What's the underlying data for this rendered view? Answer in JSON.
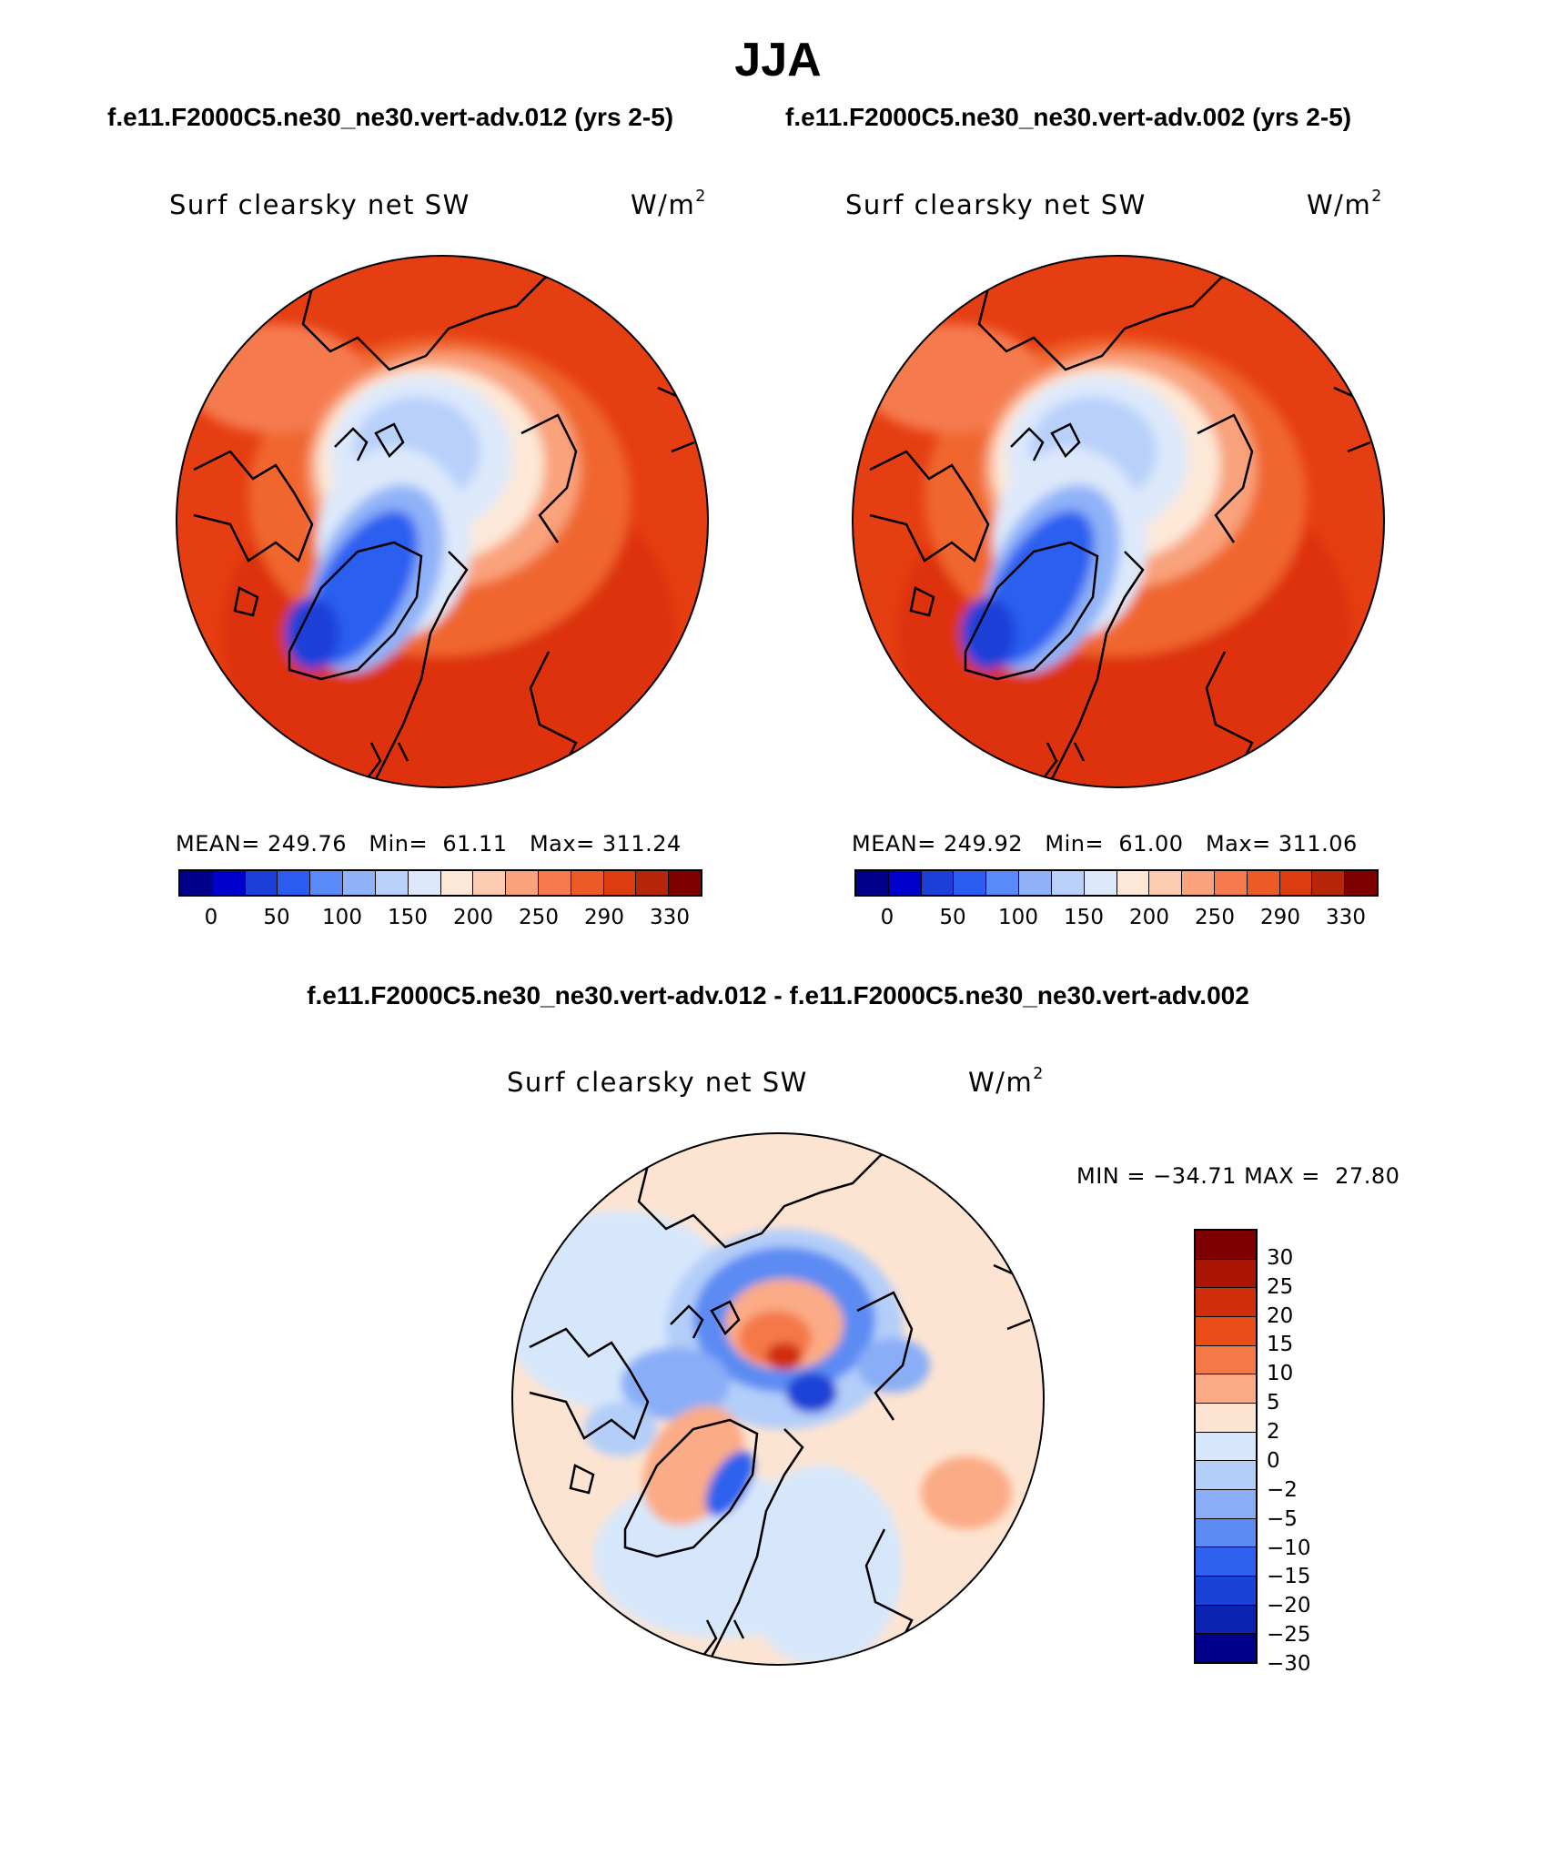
{
  "title": "JJA",
  "case_titles": {
    "left": "f.e11.F2000C5.ne30_ne30.vert-adv.012 (yrs 2-5)",
    "right": "f.e11.F2000C5.ne30_ne30.vert-adv.002 (yrs 2-5)",
    "diff": "f.e11.F2000C5.ne30_ne30.vert-adv.012 - f.e11.F2000C5.ne30_ne30.vert-adv.002"
  },
  "panels": {
    "left": {
      "variable": "Surf clearsky net SW",
      "units_base": "W/m",
      "units_exp": "2",
      "mean_label": "MEAN=",
      "mean": "249.76",
      "min_label": "Min=",
      "min": "61.11",
      "max_label": "Max=",
      "max": "311.24"
    },
    "right": {
      "variable": "Surf clearsky net SW",
      "units_base": "W/m",
      "units_exp": "2",
      "mean_label": "MEAN=",
      "mean": "249.92",
      "min_label": "Min=",
      "min": "61.00",
      "max_label": "Max=",
      "max": "311.06"
    },
    "diff": {
      "variable": "Surf clearsky net SW",
      "units_base": "W/m",
      "units_exp": "2",
      "min_label": "MIN =",
      "min": "−34.71",
      "max_label": "MAX =",
      "max": "27.80"
    }
  },
  "colorbar_abs": {
    "colors": [
      "#00008b",
      "#0000cd",
      "#1c3fd8",
      "#2b5ef0",
      "#5a8af7",
      "#8fb2f8",
      "#b8d0fa",
      "#dde9fb",
      "#fde8d7",
      "#fccbb0",
      "#f9a27c",
      "#f57a4d",
      "#ec5a28",
      "#dc3c10",
      "#b8260a",
      "#7f0000"
    ],
    "ticks": [
      "0",
      "50",
      "100",
      "150",
      "200",
      "250",
      "290",
      "330"
    ]
  },
  "colorbar_diff": {
    "colors": [
      "#7f0000",
      "#aa1505",
      "#d02e0b",
      "#eb4d18",
      "#f57848",
      "#fbab85",
      "#fde4d2",
      "#d7e7fb",
      "#b3cef9",
      "#89aef7",
      "#5c8bf3",
      "#2e62ee",
      "#1a42d6",
      "#0a23b0",
      "#00008b"
    ],
    "ticks": [
      "30",
      "25",
      "20",
      "15",
      "10",
      "5",
      "2",
      "0",
      "−2",
      "−5",
      "−10",
      "−15",
      "−20",
      "−25",
      "−30"
    ]
  }
}
